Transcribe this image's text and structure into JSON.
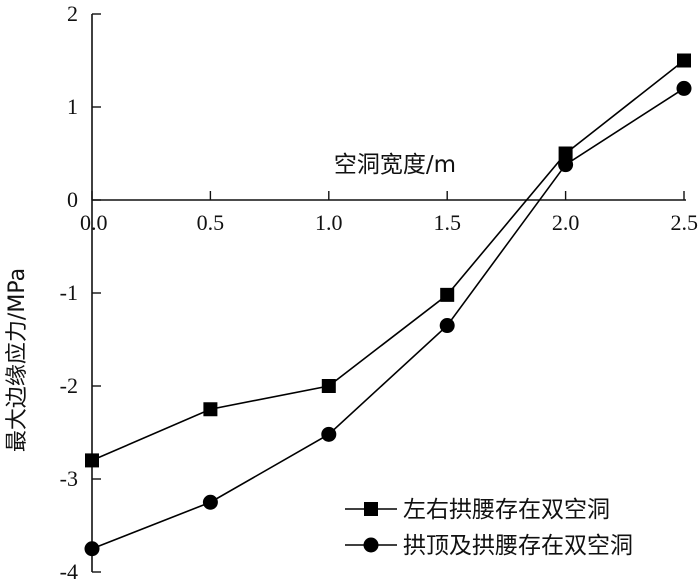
{
  "chart_data": {
    "type": "line",
    "title": "",
    "xlabel": "空洞宽度/m",
    "ylabel": "最大边缘应力/MPa",
    "x": [
      0.0,
      0.5,
      1.0,
      1.5,
      2.0,
      2.5
    ],
    "x_tick_labels": [
      "0.0",
      "0.5",
      "1.0",
      "1.5",
      "2.0",
      "2.5"
    ],
    "y_ticks": [
      2,
      1,
      0,
      -1,
      -2,
      -3,
      -4
    ],
    "y_tick_labels": [
      "2",
      "1",
      "0",
      "-1",
      "-2",
      "-3",
      "-4"
    ],
    "xlim": [
      0,
      2.5
    ],
    "ylim": [
      -4,
      2
    ],
    "grid": false,
    "legend_position": "bottom-right",
    "series": [
      {
        "name": "左右拱腰存在双空洞",
        "marker": "square",
        "color": "#000000",
        "values": [
          -2.8,
          -2.25,
          -2.0,
          -1.02,
          0.5,
          1.5
        ]
      },
      {
        "name": "拱顶及拱腰存在双空洞",
        "marker": "circle",
        "color": "#000000",
        "values": [
          -3.75,
          -3.25,
          -2.52,
          -1.35,
          0.38,
          1.2
        ]
      }
    ]
  }
}
